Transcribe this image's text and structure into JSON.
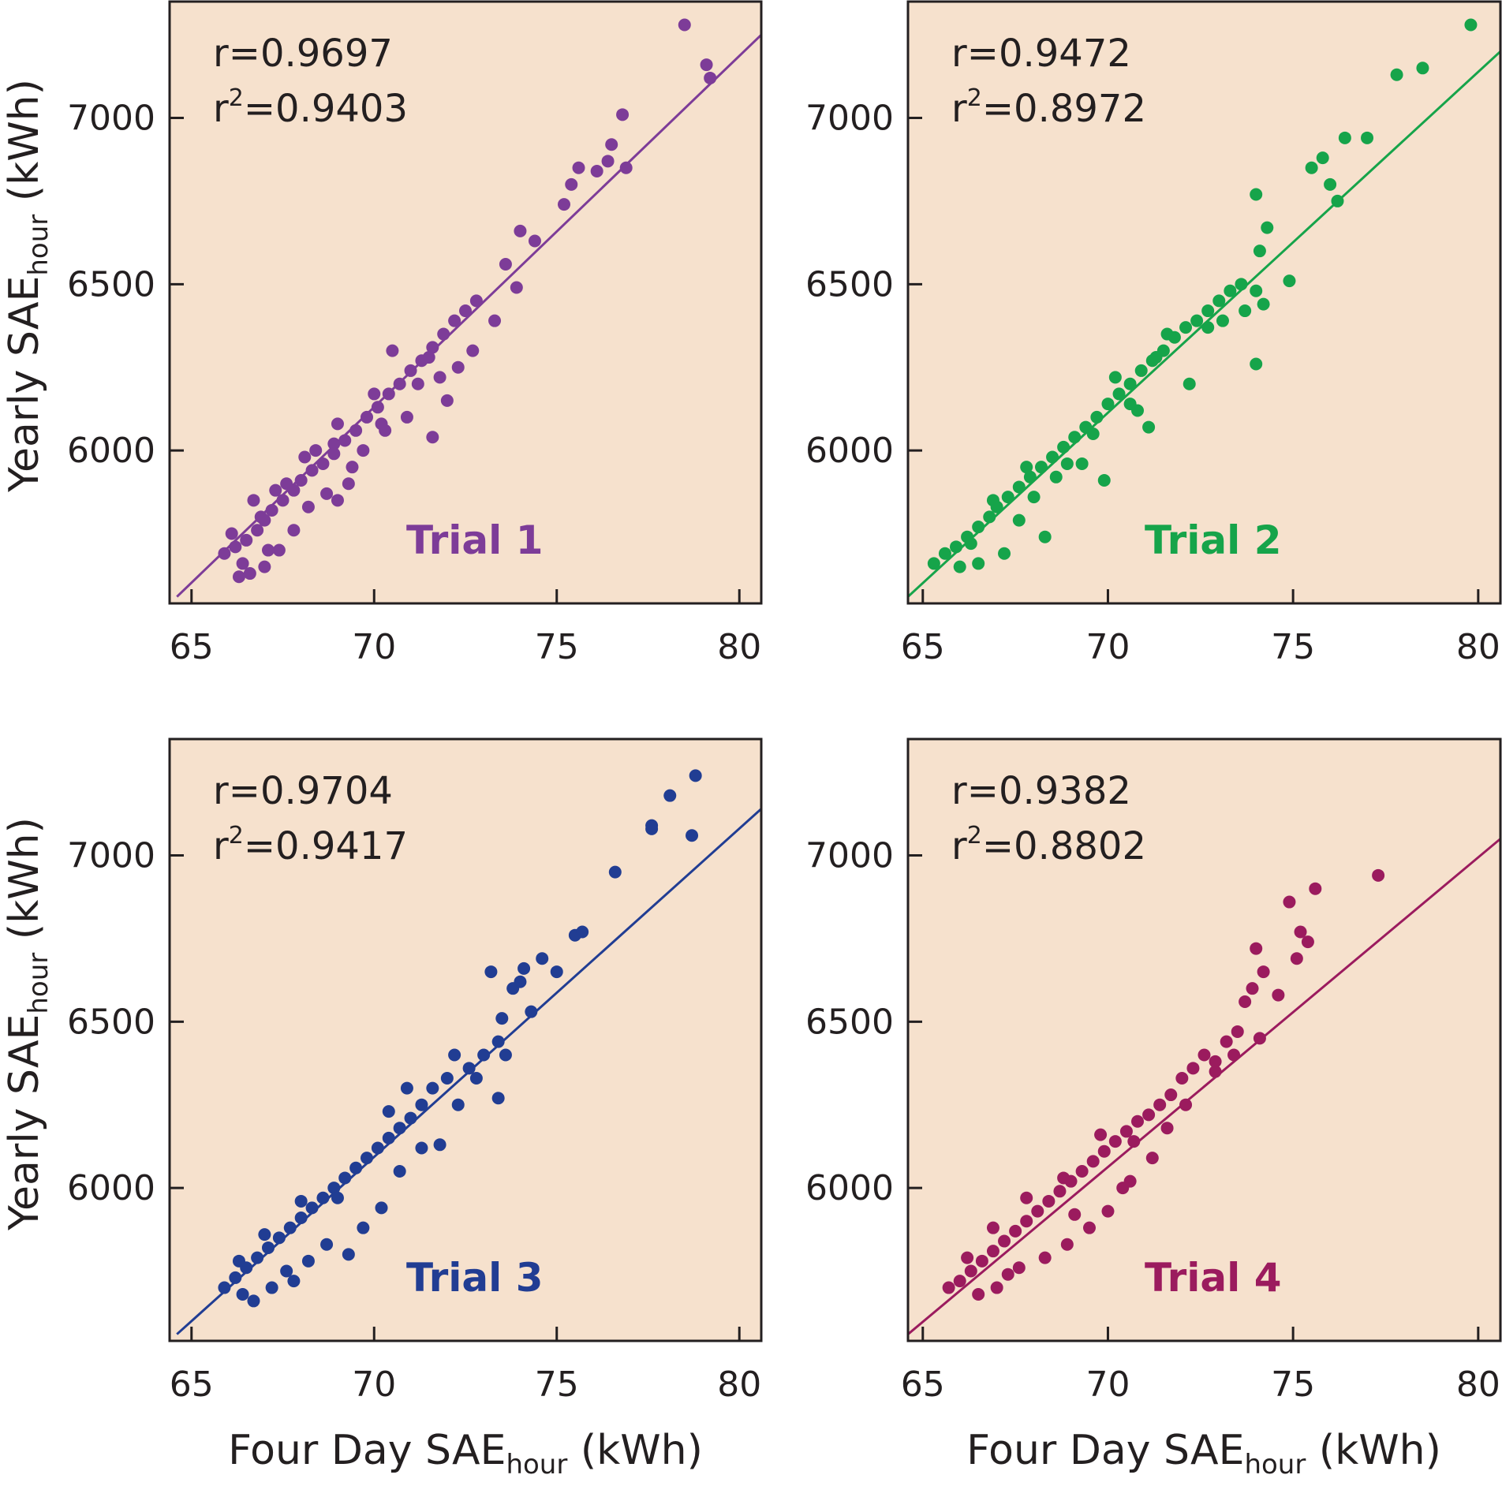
{
  "figure": {
    "y_axis_title": {
      "main": "Yearly SAE",
      "sub": "hour",
      "unit": " (kWh)"
    },
    "x_axis_title": {
      "main": "Four Day SAE",
      "sub": "hour",
      "unit": " (kWh)"
    },
    "background_color": "#f6e1cd",
    "axis_color": "#231f20"
  },
  "chart_data": [
    {
      "type": "scatter",
      "label": "Trial 1",
      "color": "#7d3c98",
      "r_text": "r=0.9697",
      "r2_prefix": "r",
      "r2_exp": "2",
      "r2_value": "=0.9403",
      "xlim": [
        64.4,
        80.6
      ],
      "ylim": [
        5540,
        7350
      ],
      "xticks": [
        65,
        70,
        75,
        80
      ],
      "yticks": [
        6000,
        6500,
        7000
      ],
      "fit": {
        "x": [
          64.6,
          80.6
        ],
        "y": [
          5560,
          7250
        ]
      },
      "points": [
        [
          65.9,
          5690
        ],
        [
          66.2,
          5710
        ],
        [
          66.5,
          5730
        ],
        [
          66.8,
          5760
        ],
        [
          67.0,
          5790
        ],
        [
          67.2,
          5820
        ],
        [
          67.5,
          5850
        ],
        [
          67.8,
          5880
        ],
        [
          68.0,
          5910
        ],
        [
          68.3,
          5940
        ],
        [
          68.6,
          5960
        ],
        [
          68.9,
          5990
        ],
        [
          69.2,
          6030
        ],
        [
          69.5,
          6060
        ],
        [
          69.8,
          6100
        ],
        [
          70.1,
          6130
        ],
        [
          70.4,
          6170
        ],
        [
          70.7,
          6200
        ],
        [
          71.0,
          6240
        ],
        [
          71.3,
          6270
        ],
        [
          71.6,
          6310
        ],
        [
          71.9,
          6350
        ],
        [
          72.2,
          6390
        ],
        [
          72.5,
          6420
        ],
        [
          72.8,
          6450
        ],
        [
          73.3,
          6390
        ],
        [
          73.6,
          6560
        ],
        [
          73.9,
          6490
        ],
        [
          74.0,
          6660
        ],
        [
          74.4,
          6630
        ],
        [
          75.2,
          6740
        ],
        [
          75.4,
          6800
        ],
        [
          75.6,
          6850
        ],
        [
          76.1,
          6840
        ],
        [
          76.4,
          6870
        ],
        [
          76.5,
          6920
        ],
        [
          76.8,
          7010
        ],
        [
          76.9,
          6850
        ],
        [
          78.5,
          7280
        ],
        [
          79.1,
          7160
        ],
        [
          79.2,
          7120
        ],
        [
          66.6,
          5630
        ],
        [
          66.3,
          5620
        ],
        [
          67.0,
          5650
        ],
        [
          67.4,
          5700
        ],
        [
          66.1,
          5750
        ],
        [
          66.7,
          5850
        ],
        [
          67.3,
          5880
        ],
        [
          68.2,
          5830
        ],
        [
          68.7,
          5870
        ],
        [
          69.0,
          5850
        ],
        [
          69.3,
          5900
        ],
        [
          69.7,
          6000
        ],
        [
          70.3,
          6060
        ],
        [
          70.9,
          6100
        ],
        [
          71.6,
          6040
        ],
        [
          72.0,
          6150
        ],
        [
          72.7,
          6300
        ],
        [
          71.8,
          6220
        ],
        [
          70.5,
          6300
        ],
        [
          70.0,
          6170
        ],
        [
          69.0,
          6080
        ],
        [
          68.4,
          6000
        ],
        [
          67.8,
          5760
        ],
        [
          67.1,
          5700
        ],
        [
          66.4,
          5660
        ],
        [
          66.9,
          5800
        ],
        [
          67.6,
          5900
        ],
        [
          68.1,
          5980
        ],
        [
          68.9,
          6020
        ],
        [
          69.4,
          5950
        ],
        [
          70.2,
          6080
        ],
        [
          71.2,
          6200
        ],
        [
          71.5,
          6280
        ],
        [
          72.3,
          6250
        ]
      ]
    },
    {
      "type": "scatter",
      "label": "Trial 2",
      "color": "#16a44a",
      "r_text": "r=0.9472",
      "r2_prefix": "r",
      "r2_exp": "2",
      "r2_value": "=0.8972",
      "xlim": [
        64.6,
        80.6
      ],
      "ylim": [
        5540,
        7350
      ],
      "xticks": [
        65,
        70,
        75,
        80
      ],
      "yticks": [
        6000,
        6500,
        7000
      ],
      "fit": {
        "x": [
          64.6,
          80.6
        ],
        "y": [
          5560,
          7200
        ]
      },
      "points": [
        [
          65.3,
          5660
        ],
        [
          65.6,
          5690
        ],
        [
          65.9,
          5710
        ],
        [
          66.2,
          5740
        ],
        [
          66.5,
          5770
        ],
        [
          66.8,
          5800
        ],
        [
          67.0,
          5830
        ],
        [
          67.3,
          5860
        ],
        [
          67.6,
          5890
        ],
        [
          67.9,
          5920
        ],
        [
          68.2,
          5950
        ],
        [
          68.5,
          5980
        ],
        [
          68.8,
          6010
        ],
        [
          69.1,
          6040
        ],
        [
          69.4,
          6070
        ],
        [
          69.7,
          6100
        ],
        [
          70.0,
          6140
        ],
        [
          70.3,
          6170
        ],
        [
          70.6,
          6200
        ],
        [
          70.9,
          6240
        ],
        [
          71.2,
          6270
        ],
        [
          71.5,
          6300
        ],
        [
          71.8,
          6340
        ],
        [
          72.1,
          6370
        ],
        [
          72.4,
          6390
        ],
        [
          72.7,
          6420
        ],
        [
          73.0,
          6450
        ],
        [
          73.3,
          6480
        ],
        [
          73.6,
          6500
        ],
        [
          74.0,
          6260
        ],
        [
          74.1,
          6600
        ],
        [
          74.3,
          6670
        ],
        [
          74.9,
          6510
        ],
        [
          75.5,
          6850
        ],
        [
          75.8,
          6880
        ],
        [
          76.0,
          6800
        ],
        [
          76.2,
          6750
        ],
        [
          76.4,
          6940
        ],
        [
          77.0,
          6940
        ],
        [
          77.8,
          7130
        ],
        [
          78.5,
          7150
        ],
        [
          79.8,
          7280
        ],
        [
          74.0,
          6770
        ],
        [
          73.7,
          6420
        ],
        [
          74.2,
          6440
        ],
        [
          71.1,
          6070
        ],
        [
          70.6,
          6140
        ],
        [
          69.9,
          5910
        ],
        [
          68.3,
          5740
        ],
        [
          67.6,
          5790
        ],
        [
          66.5,
          5660
        ],
        [
          66.0,
          5650
        ],
        [
          67.2,
          5690
        ],
        [
          68.0,
          5860
        ],
        [
          68.6,
          5920
        ],
        [
          69.3,
          5960
        ],
        [
          70.2,
          6220
        ],
        [
          71.6,
          6350
        ],
        [
          72.2,
          6200
        ],
        [
          73.1,
          6390
        ],
        [
          74.0,
          6480
        ],
        [
          72.7,
          6370
        ],
        [
          71.3,
          6280
        ],
        [
          70.8,
          6120
        ],
        [
          69.6,
          6050
        ],
        [
          68.9,
          5960
        ],
        [
          67.8,
          5950
        ],
        [
          66.9,
          5850
        ],
        [
          66.3,
          5720
        ]
      ]
    },
    {
      "type": "scatter",
      "label": "Trial 3",
      "color": "#213d93",
      "r_text": "r=0.9704",
      "r2_prefix": "r",
      "r2_exp": "2",
      "r2_value": "=0.9417",
      "xlim": [
        64.4,
        80.6
      ],
      "ylim": [
        5540,
        7350
      ],
      "xticks": [
        65,
        70,
        75,
        80
      ],
      "yticks": [
        6000,
        6500,
        7000
      ],
      "fit": {
        "x": [
          64.6,
          80.6
        ],
        "y": [
          5560,
          7140
        ]
      },
      "points": [
        [
          65.9,
          5700
        ],
        [
          66.2,
          5730
        ],
        [
          66.5,
          5760
        ],
        [
          66.8,
          5790
        ],
        [
          67.1,
          5820
        ],
        [
          67.4,
          5850
        ],
        [
          67.7,
          5880
        ],
        [
          68.0,
          5910
        ],
        [
          68.3,
          5940
        ],
        [
          68.6,
          5970
        ],
        [
          68.9,
          6000
        ],
        [
          69.2,
          6030
        ],
        [
          69.5,
          6060
        ],
        [
          69.8,
          6090
        ],
        [
          70.1,
          6120
        ],
        [
          70.4,
          6150
        ],
        [
          70.7,
          6180
        ],
        [
          71.0,
          6210
        ],
        [
          71.3,
          6250
        ],
        [
          71.6,
          6300
        ],
        [
          72.0,
          6330
        ],
        [
          72.3,
          6250
        ],
        [
          72.6,
          6360
        ],
        [
          73.0,
          6400
        ],
        [
          73.2,
          6650
        ],
        [
          73.4,
          6440
        ],
        [
          73.5,
          6510
        ],
        [
          73.4,
          6270
        ],
        [
          73.8,
          6600
        ],
        [
          74.1,
          6660
        ],
        [
          74.3,
          6530
        ],
        [
          74.6,
          6690
        ],
        [
          75.0,
          6650
        ],
        [
          75.5,
          6760
        ],
        [
          75.7,
          6770
        ],
        [
          76.6,
          6950
        ],
        [
          77.6,
          7080
        ],
        [
          77.6,
          7090
        ],
        [
          78.1,
          7180
        ],
        [
          78.7,
          7060
        ],
        [
          78.8,
          7240
        ],
        [
          66.7,
          5660
        ],
        [
          66.4,
          5680
        ],
        [
          67.2,
          5700
        ],
        [
          67.6,
          5750
        ],
        [
          68.2,
          5780
        ],
        [
          68.7,
          5830
        ],
        [
          69.3,
          5800
        ],
        [
          69.7,
          5880
        ],
        [
          70.2,
          5940
        ],
        [
          70.7,
          6050
        ],
        [
          71.3,
          6120
        ],
        [
          70.9,
          6300
        ],
        [
          72.2,
          6400
        ],
        [
          72.8,
          6330
        ],
        [
          73.6,
          6400
        ],
        [
          74.0,
          6620
        ],
        [
          68.0,
          5960
        ],
        [
          67.0,
          5860
        ],
        [
          66.3,
          5780
        ],
        [
          67.8,
          5720
        ],
        [
          69.0,
          5970
        ],
        [
          70.4,
          6230
        ],
        [
          71.8,
          6130
        ]
      ]
    },
    {
      "type": "scatter",
      "label": "Trial 4",
      "color": "#9b1b5e",
      "r_text": "r=0.9382",
      "r2_prefix": "r",
      "r2_exp": "2",
      "r2_value": "=0.8802",
      "xlim": [
        64.6,
        80.6
      ],
      "ylim": [
        5540,
        7350
      ],
      "xticks": [
        65,
        70,
        75,
        80
      ],
      "yticks": [
        6000,
        6500,
        7000
      ],
      "fit": {
        "x": [
          64.6,
          80.6
        ],
        "y": [
          5560,
          7050
        ]
      },
      "points": [
        [
          65.7,
          5700
        ],
        [
          66.0,
          5720
        ],
        [
          66.3,
          5750
        ],
        [
          66.6,
          5780
        ],
        [
          66.9,
          5810
        ],
        [
          67.2,
          5840
        ],
        [
          67.5,
          5870
        ],
        [
          67.8,
          5900
        ],
        [
          68.1,
          5930
        ],
        [
          68.4,
          5960
        ],
        [
          68.7,
          5990
        ],
        [
          69.0,
          6020
        ],
        [
          69.3,
          6050
        ],
        [
          69.6,
          6080
        ],
        [
          69.9,
          6110
        ],
        [
          70.2,
          6140
        ],
        [
          70.5,
          6170
        ],
        [
          70.8,
          6200
        ],
        [
          71.1,
          6220
        ],
        [
          71.4,
          6250
        ],
        [
          71.7,
          6280
        ],
        [
          72.0,
          6330
        ],
        [
          72.3,
          6360
        ],
        [
          72.6,
          6400
        ],
        [
          72.9,
          6380
        ],
        [
          73.2,
          6440
        ],
        [
          73.5,
          6470
        ],
        [
          73.7,
          6560
        ],
        [
          73.9,
          6600
        ],
        [
          74.2,
          6650
        ],
        [
          74.0,
          6720
        ],
        [
          74.6,
          6580
        ],
        [
          74.9,
          6860
        ],
        [
          75.1,
          6690
        ],
        [
          75.2,
          6770
        ],
        [
          75.4,
          6740
        ],
        [
          75.6,
          6900
        ],
        [
          77.3,
          6940
        ],
        [
          66.5,
          5680
        ],
        [
          67.0,
          5700
        ],
        [
          67.6,
          5760
        ],
        [
          68.3,
          5790
        ],
        [
          68.9,
          5830
        ],
        [
          69.5,
          5880
        ],
        [
          70.0,
          5930
        ],
        [
          70.4,
          6000
        ],
        [
          71.2,
          6090
        ],
        [
          71.6,
          6180
        ],
        [
          72.1,
          6250
        ],
        [
          72.9,
          6350
        ],
        [
          73.4,
          6400
        ],
        [
          74.1,
          6450
        ],
        [
          68.8,
          6030
        ],
        [
          69.8,
          6160
        ],
        [
          70.7,
          6140
        ],
        [
          70.6,
          6020
        ],
        [
          69.1,
          5920
        ],
        [
          67.8,
          5970
        ],
        [
          66.9,
          5880
        ],
        [
          66.2,
          5790
        ],
        [
          67.3,
          5740
        ]
      ]
    }
  ]
}
